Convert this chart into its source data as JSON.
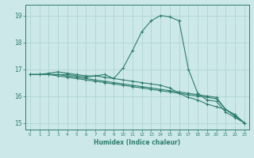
{
  "title": "",
  "xlabel": "Humidex (Indice chaleur)",
  "ylabel": "",
  "bg_color": "#cce8e8",
  "grid_color": "#b0d4d4",
  "line_color": "#2e7d6e",
  "xlim": [
    -0.5,
    23.5
  ],
  "ylim": [
    14.75,
    19.4
  ],
  "yticks": [
    15,
    16,
    17,
    18,
    19
  ],
  "xticks": [
    0,
    1,
    2,
    3,
    4,
    5,
    6,
    7,
    8,
    9,
    10,
    11,
    12,
    13,
    14,
    15,
    16,
    17,
    18,
    19,
    20,
    21,
    22,
    23
  ],
  "lines": [
    {
      "x": [
        0,
        1,
        2,
        3,
        4,
        5,
        6,
        7,
        8,
        9,
        10,
        11,
        12,
        13,
        14,
        15,
        16,
        17,
        18,
        19,
        20,
        21,
        22,
        23
      ],
      "y": [
        16.8,
        16.8,
        16.85,
        16.9,
        16.85,
        16.8,
        16.75,
        16.75,
        16.7,
        16.65,
        17.05,
        17.7,
        18.4,
        18.8,
        19.0,
        18.95,
        18.8,
        17.0,
        16.1,
        15.85,
        15.8,
        15.4,
        15.2,
        15.0
      ]
    },
    {
      "x": [
        0,
        1,
        2,
        3,
        4,
        5,
        6,
        7,
        8,
        9,
        10,
        11,
        12,
        13,
        14,
        15,
        16,
        17,
        18,
        19,
        20,
        21,
        22,
        23
      ],
      "y": [
        16.8,
        16.8,
        16.8,
        16.8,
        16.75,
        16.7,
        16.65,
        16.6,
        16.55,
        16.5,
        16.45,
        16.4,
        16.35,
        16.3,
        16.25,
        16.2,
        16.15,
        16.1,
        16.05,
        16.0,
        15.95,
        15.5,
        15.3,
        15.0
      ]
    },
    {
      "x": [
        0,
        1,
        2,
        3,
        4,
        5,
        6,
        7,
        8,
        9,
        10,
        11,
        12,
        13,
        14,
        15,
        16,
        17,
        18,
        19,
        20,
        21,
        22,
        23
      ],
      "y": [
        16.8,
        16.8,
        16.8,
        16.75,
        16.7,
        16.65,
        16.6,
        16.55,
        16.5,
        16.45,
        16.4,
        16.35,
        16.3,
        16.25,
        16.2,
        16.15,
        16.1,
        16.05,
        16.0,
        15.95,
        15.9,
        15.5,
        15.25,
        15.0
      ]
    },
    {
      "x": [
        0,
        1,
        2,
        3,
        4,
        5,
        6,
        7,
        8,
        9,
        10,
        11,
        12,
        13,
        14,
        15,
        16,
        17,
        18,
        19,
        20,
        21,
        22,
        23
      ],
      "y": [
        16.8,
        16.8,
        16.8,
        16.8,
        16.8,
        16.75,
        16.7,
        16.75,
        16.8,
        16.65,
        16.6,
        16.55,
        16.5,
        16.45,
        16.4,
        16.3,
        16.1,
        15.95,
        15.85,
        15.7,
        15.6,
        15.5,
        15.3,
        15.0
      ]
    }
  ]
}
